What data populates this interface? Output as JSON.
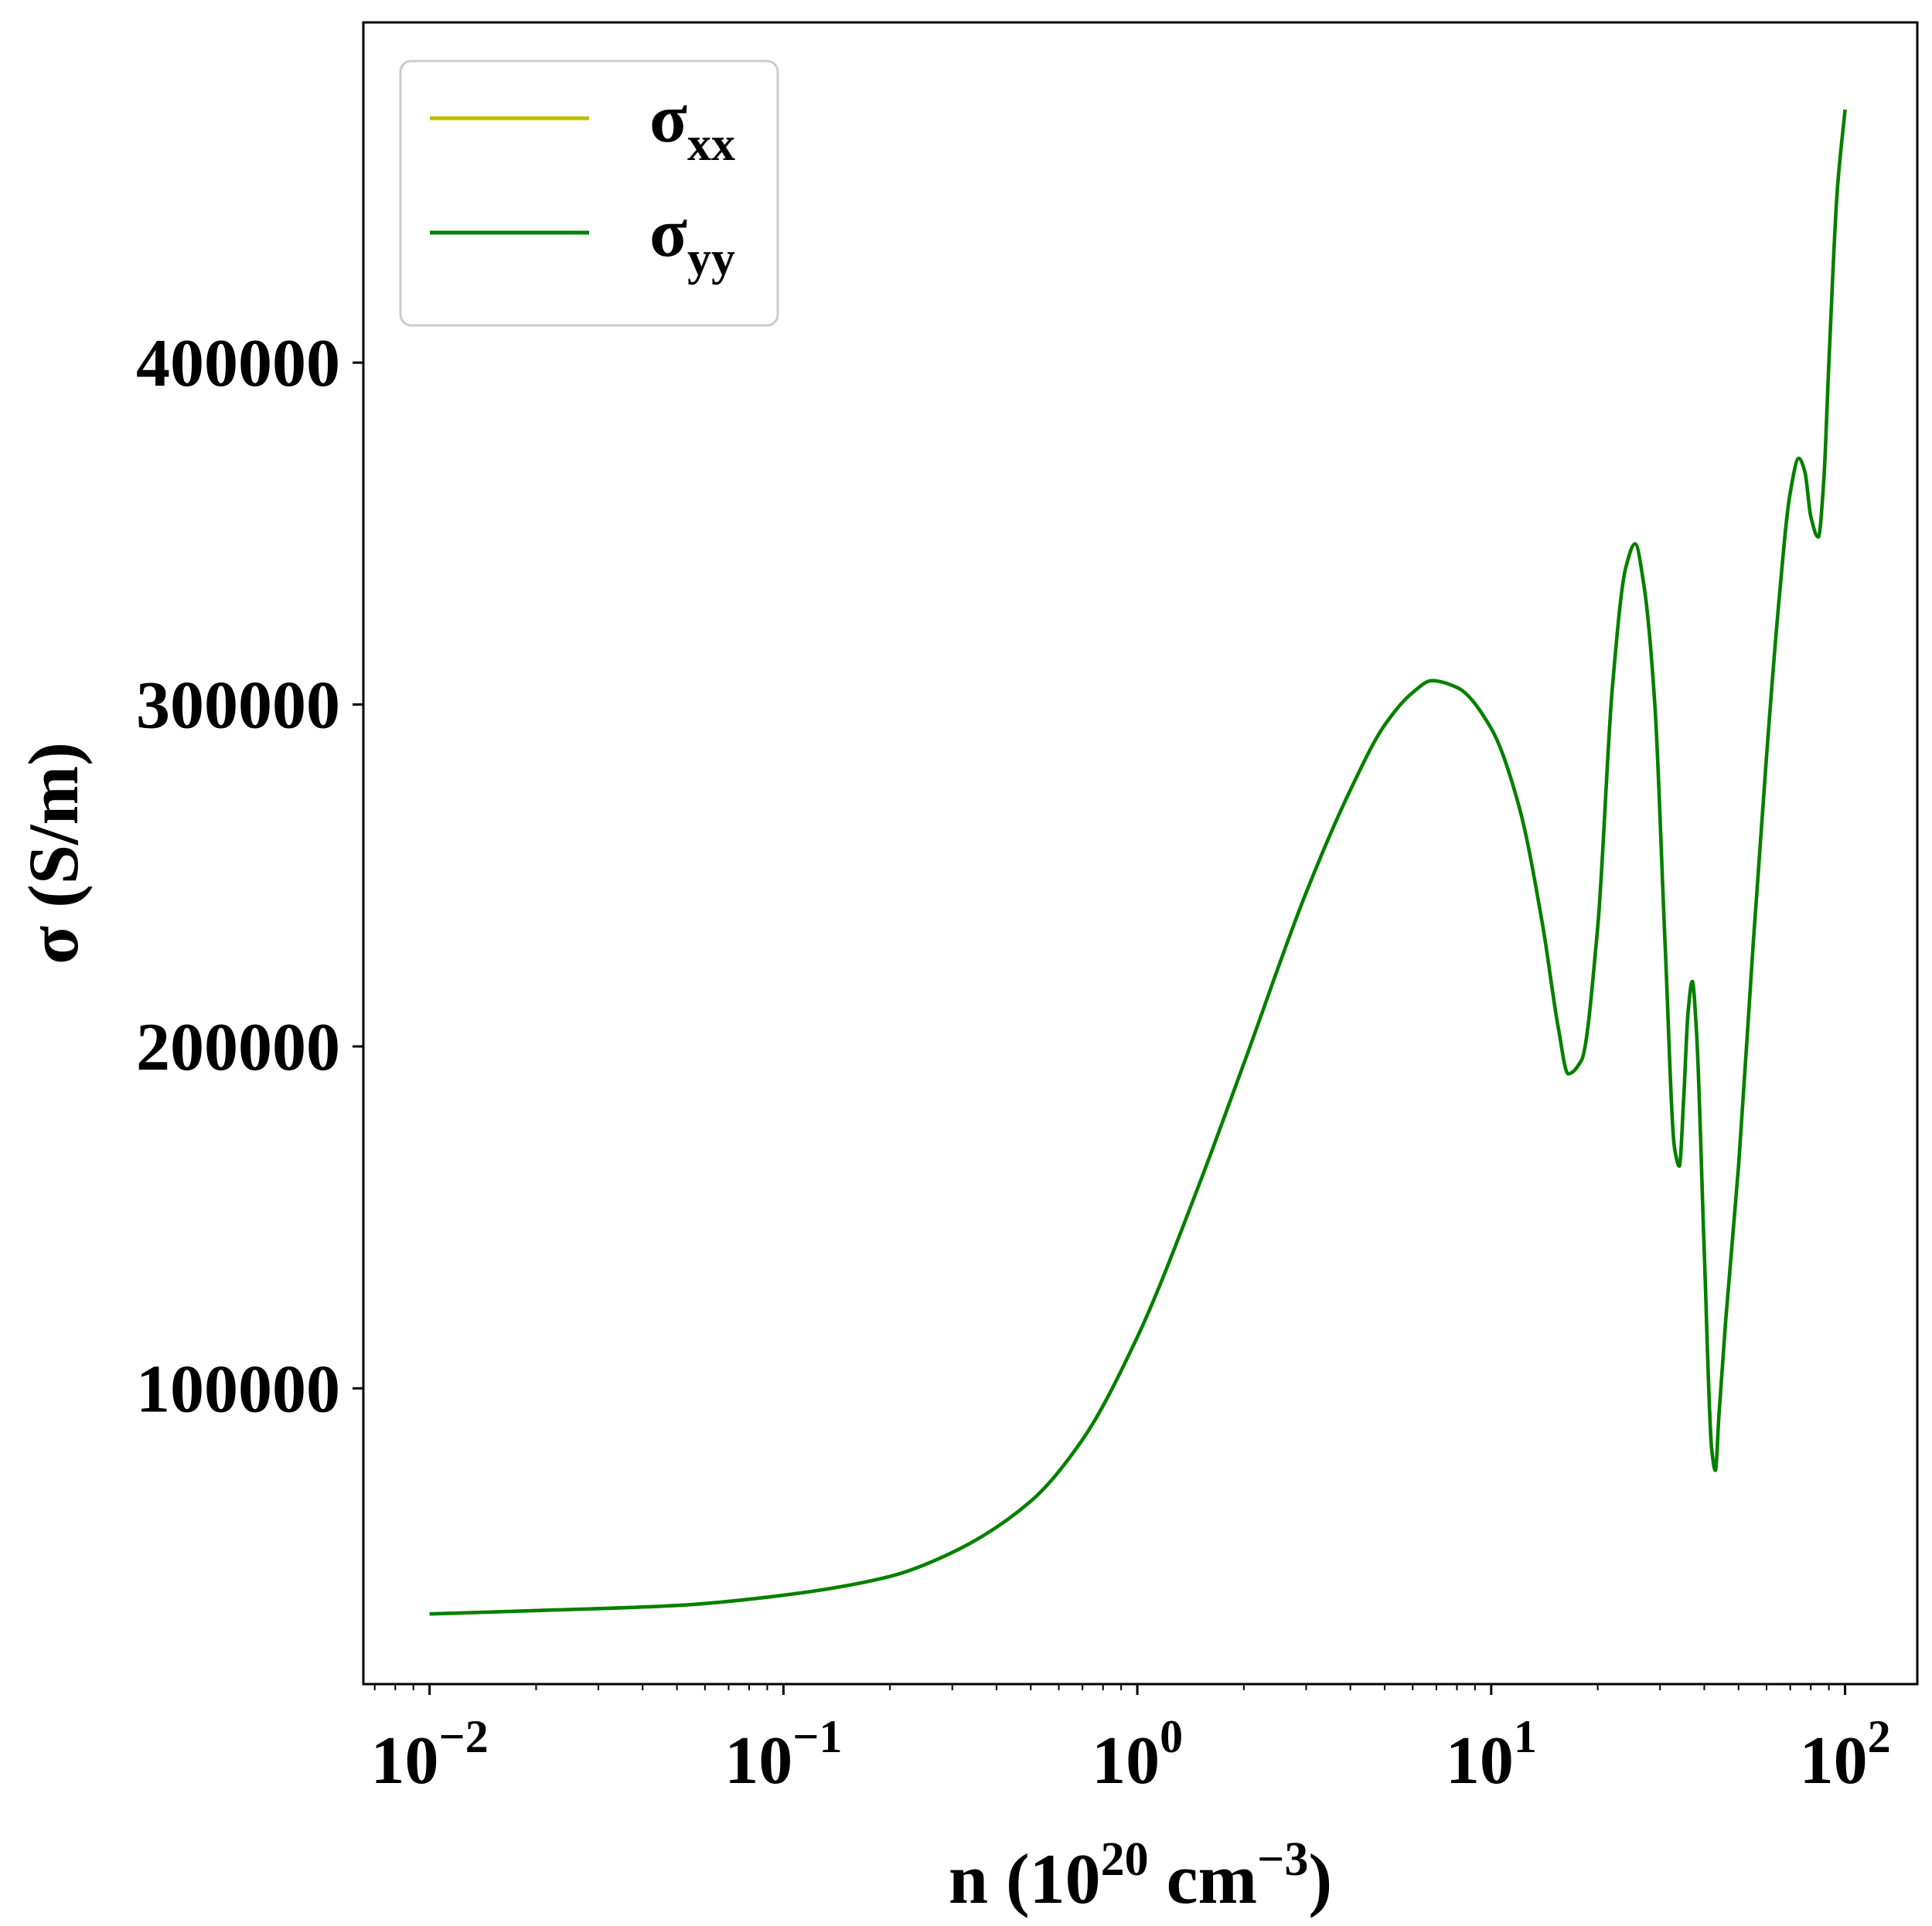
{
  "chart_data": {
    "type": "line",
    "xscale": "log",
    "xlim": [
      0.0065,
      160
    ],
    "ylim": [
      13500,
      499500
    ],
    "xlabel": {
      "base": "n (10",
      "exp1": "20",
      "mid": " cm",
      "exp2": "−3",
      "tail": ")"
    },
    "ylabel": "σ (S/m)",
    "x_ticks": [
      {
        "value": 0.01,
        "base": "10",
        "exp": "−2"
      },
      {
        "value": 0.1,
        "base": "10",
        "exp": "−1"
      },
      {
        "value": 1,
        "base": "10",
        "exp": "0"
      },
      {
        "value": 10,
        "base": "10",
        "exp": "1"
      },
      {
        "value": 100,
        "base": "10",
        "exp": "2"
      }
    ],
    "y_ticks": [
      {
        "value": 100000,
        "label": "100000"
      },
      {
        "value": 200000,
        "label": "200000"
      },
      {
        "value": 300000,
        "label": "300000"
      },
      {
        "value": 400000,
        "label": "400000"
      }
    ],
    "legend_position": "top-left",
    "series": [
      {
        "name": "σxx",
        "legend": {
          "base": "σ",
          "sub": "xx"
        },
        "color": "#bfbf00",
        "x": [
          0.01,
          0.02,
          0.05,
          0.1,
          0.2,
          0.3,
          0.5,
          0.7,
          1.0,
          1.5,
          2.0,
          3.0,
          4.0,
          5.0,
          6.0,
          6.8,
          8.0,
          10.0,
          12.0,
          14.0,
          15.5,
          16.5,
          18.0,
          20.0,
          22.0,
          24.0,
          25.5,
          27.0,
          29.0,
          31.0,
          33.0,
          34.0,
          35.0,
          36.0,
          37.0,
          38.0,
          40.0,
          42.0,
          43.0,
          44.0,
          46.0,
          50.0,
          55.0,
          60.0,
          65.0,
          70.0,
          74.0,
          77.0,
          80.0,
          84.0,
          87.0,
          90.0,
          95.0,
          100.0
        ],
        "y": [
          34000,
          35000,
          36500,
          39500,
          45000,
          52000,
          67000,
          85000,
          115000,
          160000,
          195000,
          245000,
          275000,
          294000,
          303500,
          307000,
          305000,
          293000,
          270000,
          235000,
          205000,
          192000,
          196000,
          235000,
          305000,
          340000,
          347000,
          335000,
          300000,
          230000,
          170000,
          165000,
          185000,
          210000,
          219000,
          205000,
          140000,
          82000,
          76000,
          92000,
          120000,
          165000,
          230000,
          285000,
          330000,
          362000,
          372000,
          368000,
          355000,
          349000,
          365000,
          400000,
          450000,
          474000
        ]
      },
      {
        "name": "σyy",
        "legend": {
          "base": "σ",
          "sub": "yy"
        },
        "color": "#008000",
        "x": [
          0.01,
          0.02,
          0.05,
          0.1,
          0.2,
          0.3,
          0.5,
          0.7,
          1.0,
          1.5,
          2.0,
          3.0,
          4.0,
          5.0,
          6.0,
          6.8,
          8.0,
          10.0,
          12.0,
          14.0,
          15.5,
          16.5,
          18.0,
          20.0,
          22.0,
          24.0,
          25.5,
          27.0,
          29.0,
          31.0,
          33.0,
          34.0,
          35.0,
          36.0,
          37.0,
          38.0,
          40.0,
          42.0,
          43.0,
          44.0,
          46.0,
          50.0,
          55.0,
          60.0,
          65.0,
          70.0,
          74.0,
          77.0,
          80.0,
          84.0,
          87.0,
          90.0,
          95.0,
          100.0
        ],
        "y": [
          34000,
          35000,
          36500,
          39500,
          45000,
          52000,
          67000,
          85000,
          115000,
          160000,
          195000,
          245000,
          275000,
          294000,
          303500,
          307000,
          305000,
          293000,
          270000,
          235000,
          205000,
          192000,
          196000,
          235000,
          305000,
          340000,
          347000,
          335000,
          300000,
          230000,
          170000,
          165000,
          185000,
          210000,
          219000,
          205000,
          140000,
          82000,
          76000,
          92000,
          120000,
          165000,
          230000,
          285000,
          330000,
          362000,
          372000,
          368000,
          355000,
          349000,
          365000,
          400000,
          450000,
          474000
        ]
      }
    ]
  }
}
